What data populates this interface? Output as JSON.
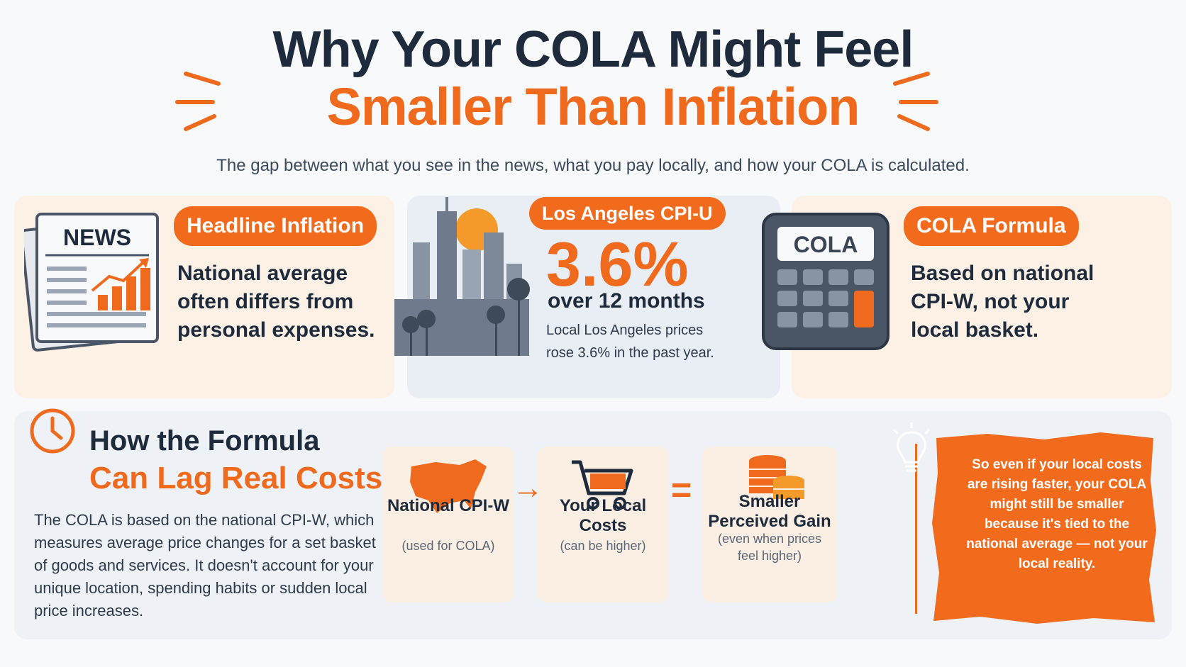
{
  "header": {
    "title_line1": "Why Your COLA Might Feel",
    "title_line2": "Smaller Than Inflation",
    "subtitle": "The gap between what you see in the news, what you pay locally, and how your COLA is calculated."
  },
  "cards": [
    {
      "label": "Headline Inflation",
      "text": "National average often differs from personal expenses.",
      "icon": "newspaper-icon",
      "icon_text": "NEWS"
    },
    {
      "label": "Los Angeles CPI-U",
      "value": "3.6%",
      "period": "over 12 months",
      "text": "Local Los Angeles prices rose 3.6% in the past year.",
      "icon": "city-skyline-icon"
    },
    {
      "label": "COLA Formula",
      "text": "Based on national CPI-W, not your local basket.",
      "icon": "calculator-icon",
      "icon_text": "COLA"
    }
  ],
  "formula_section": {
    "title_line1": "How the Formula",
    "title_line2": "Can Lag Real Costs",
    "body": "The COLA is based on the national CPI-W, which measures average price changes for a set basket of goods and services. It doesn't account for your unique location, spending habits or sudden local price increases.",
    "steps": [
      {
        "title": "National CPI-W",
        "sub": "(used for COLA)",
        "icon": "us-map-icon"
      },
      {
        "title": "Your Local Costs",
        "sub": "(can be higher)",
        "icon": "shopping-cart-icon"
      },
      {
        "title": "Smaller Perceived Gain",
        "sub": "(even when prices feel higher)",
        "icon": "coin-stack-icon"
      }
    ],
    "callout": "So even if your local costs are rising faster, your COLA might still be smaller because it's tied to the national average — not your local reality.",
    "callout_icon": "lightbulb-icon"
  },
  "colors": {
    "accent": "#f06a1e",
    "navy": "#1e2b3c",
    "peach": "#fdf1e6",
    "blue_gray": "#e9eef5"
  }
}
